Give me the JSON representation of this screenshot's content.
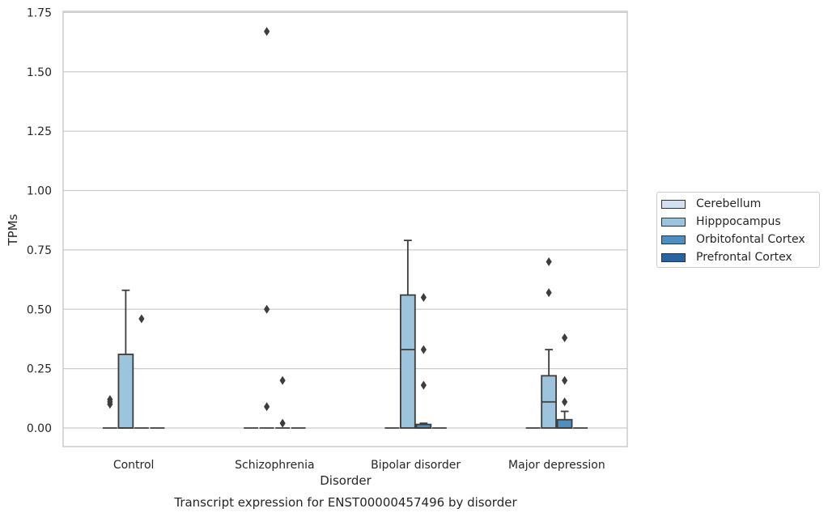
{
  "chart_data": {
    "type": "box",
    "title": "",
    "caption": "Transcript expression for ENST00000457496 by disorder",
    "xlabel": "Disorder",
    "ylabel": "TPMs",
    "ylim": [
      -0.08,
      1.76
    ],
    "yticks": [
      "0.00",
      "0.25",
      "0.50",
      "0.75",
      "1.00",
      "1.25",
      "1.50",
      "1.75"
    ],
    "grid": "horizontal",
    "legend_position": "right-center",
    "categories": [
      "Control",
      "Schizophrenia",
      "Bipolar disorder",
      "Major depression"
    ],
    "series": [
      {
        "name": "Cerebellum",
        "color": "#d3e0f0",
        "boxes": [
          {
            "q1": 0,
            "median": 0,
            "q3": 0,
            "whisker_low": 0,
            "whisker_high": 0,
            "outliers": [
              0.1,
              0.12,
              0.11
            ]
          },
          {
            "q1": 0,
            "median": 0,
            "q3": 0,
            "whisker_low": 0,
            "whisker_high": 0,
            "outliers": []
          },
          {
            "q1": 0,
            "median": 0,
            "q3": 0,
            "whisker_low": 0,
            "whisker_high": 0,
            "outliers": []
          },
          {
            "q1": 0,
            "median": 0,
            "q3": 0,
            "whisker_low": 0,
            "whisker_high": 0,
            "outliers": []
          }
        ]
      },
      {
        "name": "Hipppocampus",
        "color": "#9cc4dc",
        "boxes": [
          {
            "q1": 0,
            "median": 0,
            "q3": 0.31,
            "whisker_low": 0,
            "whisker_high": 0.58,
            "outliers": []
          },
          {
            "q1": 0,
            "median": 0,
            "q3": 0,
            "whisker_low": 0,
            "whisker_high": 0,
            "outliers": [
              1.67,
              0.5,
              0.09
            ]
          },
          {
            "q1": 0,
            "median": 0.33,
            "q3": 0.56,
            "whisker_low": 0,
            "whisker_high": 0.79,
            "outliers": []
          },
          {
            "q1": 0,
            "median": 0.11,
            "q3": 0.22,
            "whisker_low": 0,
            "whisker_high": 0.33,
            "outliers": [
              0.7,
              0.57
            ]
          }
        ]
      },
      {
        "name": "Orbitofontal Cortex",
        "color": "#4f8fc0",
        "boxes": [
          {
            "q1": 0,
            "median": 0,
            "q3": 0,
            "whisker_low": 0,
            "whisker_high": 0,
            "outliers": [
              0.46
            ]
          },
          {
            "q1": 0,
            "median": 0,
            "q3": 0,
            "whisker_low": 0,
            "whisker_high": 0,
            "outliers": [
              0.2,
              0.02
            ]
          },
          {
            "q1": 0,
            "median": 0,
            "q3": 0.015,
            "whisker_low": 0,
            "whisker_high": 0.02,
            "outliers": [
              0.55,
              0.33,
              0.18
            ]
          },
          {
            "q1": 0,
            "median": 0,
            "q3": 0.035,
            "whisker_low": 0,
            "whisker_high": 0.07,
            "outliers": [
              0.38,
              0.2,
              0.11
            ]
          }
        ]
      },
      {
        "name": "Prefrontal Cortex",
        "color": "#2a64a0",
        "boxes": [
          {
            "q1": 0,
            "median": 0,
            "q3": 0,
            "whisker_low": 0,
            "whisker_high": 0,
            "outliers": []
          },
          {
            "q1": 0,
            "median": 0,
            "q3": 0,
            "whisker_low": 0,
            "whisker_high": 0,
            "outliers": []
          },
          {
            "q1": 0,
            "median": 0,
            "q3": 0,
            "whisker_low": 0,
            "whisker_high": 0,
            "outliers": []
          },
          {
            "q1": 0,
            "median": 0,
            "q3": 0,
            "whisker_low": 0,
            "whisker_high": 0,
            "outliers": []
          }
        ]
      }
    ]
  }
}
